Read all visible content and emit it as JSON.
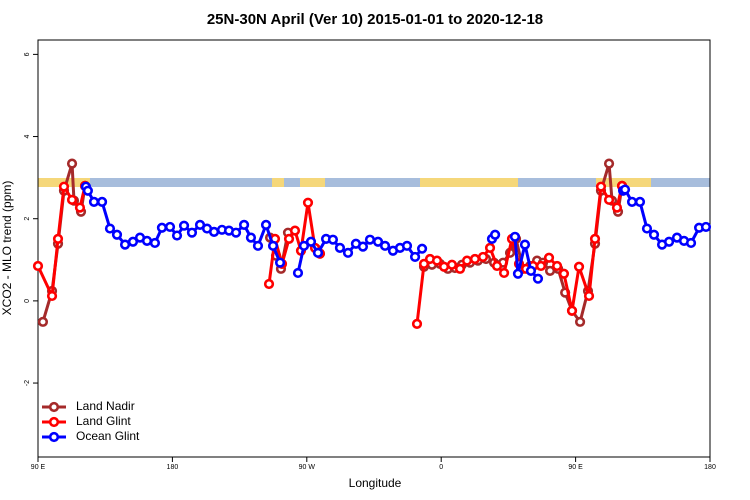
{
  "chart_data": {
    "type": "line",
    "title": "25N-30N April (Ver 10)   2015-01-01 to 2020-12-18",
    "xlabel": "Longitude",
    "ylabel": "XCO2 - MLO trend (ppm)",
    "xlim": [
      90,
      540
    ],
    "ylim": [
      -3.8,
      6.35
    ],
    "xticks": [
      {
        "value": 90,
        "label": "90 E"
      },
      {
        "value": 180,
        "label": "180"
      },
      {
        "value": 270,
        "label": "90 W"
      },
      {
        "value": 360,
        "label": "0"
      },
      {
        "value": 450,
        "label": "90 E"
      },
      {
        "value": 540,
        "label": "180"
      }
    ],
    "yticks": [
      6,
      4,
      2,
      0,
      -2
    ],
    "legend": "bottom-left",
    "series": [
      {
        "name": "Land Nadir",
        "color": "#a52a2a",
        "x": [
          93.3,
          99.4,
          103.4,
          107.4,
          112.8,
          114.1,
          118.8,
          121.5,
          null,
          245.4,
          249.4,
          252.7,
          257.4,
          null,
          276.1,
          278.8,
          null,
          348.5,
          353.8,
          359.2,
          364.5,
          369.2,
          373.9,
          379.3,
          384.6,
          390,
          395.4,
          401.4,
          406.1,
          410.1,
          414.8,
          419.5,
          424.2,
          428.2,
          432.9,
          438.3,
          443,
          447.6,
          453,
          458.3,
          463,
          467,
          472.4,
          474.4,
          478.4,
          481.1
        ],
        "values": [
          -0.51,
          0.24,
          1.39,
          2.68,
          3.34,
          2.44,
          2.17,
          2.8,
          null,
          1.54,
          1.1,
          0.78,
          1.66,
          null,
          1.27,
          1.15,
          null,
          0.83,
          0.88,
          0.9,
          0.78,
          0.8,
          0.88,
          0.93,
          0.98,
          1.02,
          0.93,
          0.93,
          1.17,
          1.51,
          0.78,
          0.85,
          0.98,
          0.93,
          0.73,
          0.78,
          0.2,
          -0.24,
          -0.51,
          0.24,
          1.39,
          2.68,
          3.34,
          2.44,
          2.17,
          2.8
        ]
      },
      {
        "name": "Land Glint",
        "color": "#ff0000",
        "x": [
          90,
          99.4,
          103.4,
          107.4,
          112.8,
          118.1,
          121.5,
          null,
          244.7,
          248.7,
          253.4,
          258.1,
          262.1,
          266.1,
          270.8,
          275.5,
          278.8,
          null,
          343.8,
          348.5,
          352.5,
          357.2,
          361.9,
          367.2,
          372.6,
          377.3,
          382.6,
          388,
          392.7,
          397.4,
          402.1,
          407.4,
          412.1,
          416.8,
          421.5,
          426.8,
          432.2,
          437.6,
          442.2,
          447.6,
          452.3,
          459,
          463,
          467,
          472.4,
          477.7,
          481.1
        ],
        "values": [
          0.85,
          0.12,
          1.51,
          2.78,
          2.46,
          2.27,
          2.8,
          null,
          0.41,
          1.51,
          0.9,
          1.51,
          1.71,
          1.22,
          2.39,
          1.29,
          1.15,
          null,
          -0.56,
          0.9,
          1.02,
          0.98,
          0.83,
          0.88,
          0.78,
          0.98,
          1.02,
          1.07,
          1.29,
          0.85,
          0.68,
          1.51,
          0.9,
          0.78,
          0.85,
          0.85,
          1.05,
          0.85,
          0.66,
          -0.24,
          0.83,
          0.12,
          1.51,
          2.78,
          2.46,
          2.27,
          2.8
        ]
      },
      {
        "name": "Ocean Glint",
        "color": "#0000ff",
        "x": [
          122.1,
          123.4,
          127.5,
          132.9,
          138.2,
          142.9,
          148.3,
          153.6,
          158.3,
          163,
          168.3,
          173,
          178.4,
          183.1,
          187.8,
          193.1,
          198.5,
          203.2,
          207.9,
          213.2,
          217.9,
          222.6,
          228,
          232.6,
          237.3,
          242.7,
          247.4,
          252.1,
          null,
          264.1,
          268.1,
          272.8,
          277.5,
          282.9,
          287.5,
          292.2,
          297.6,
          302.9,
          307.6,
          312.3,
          317.7,
          322.4,
          327.7,
          332.4,
          337.1,
          342.5,
          347.2,
          null,
          394,
          396.1,
          null,
          409.4,
          411.4,
          416.1,
          420.1,
          424.8,
          null,
          481.8,
          483.1,
          487.8,
          493.1,
          497.8,
          502.5,
          507.9,
          512.6,
          517.9,
          522.6,
          527.3,
          532.7,
          537.3
        ],
        "values": [
          2.78,
          2.68,
          2.41,
          2.41,
          1.76,
          1.61,
          1.37,
          1.44,
          1.54,
          1.46,
          1.41,
          1.78,
          1.8,
          1.59,
          1.83,
          1.66,
          1.85,
          1.76,
          1.68,
          1.73,
          1.71,
          1.66,
          1.85,
          1.54,
          1.34,
          1.85,
          1.34,
          0.93,
          null,
          0.68,
          1.34,
          1.44,
          1.17,
          1.51,
          1.49,
          1.29,
          1.17,
          1.39,
          1.32,
          1.49,
          1.44,
          1.34,
          1.22,
          1.29,
          1.34,
          1.07,
          1.27,
          null,
          1.51,
          1.61,
          null,
          1.56,
          0.66,
          1.37,
          0.73,
          0.54,
          null,
          2.68,
          2.71,
          2.41,
          2.41,
          1.76,
          1.61,
          1.37,
          1.44,
          1.54,
          1.46,
          1.41,
          1.78,
          1.8
        ]
      }
    ]
  }
}
